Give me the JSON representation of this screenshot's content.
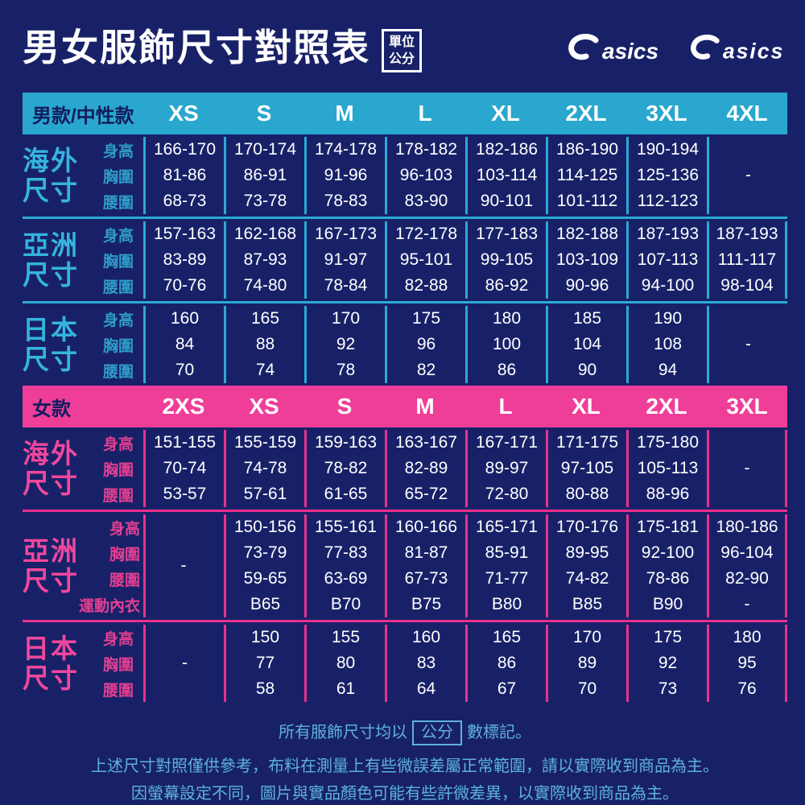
{
  "page": {
    "title": "男女服飾尺寸對照表",
    "unit_badge_line1": "單位",
    "unit_badge_line2": "公分",
    "brand": "asics"
  },
  "colors": {
    "background_navy": "#182168",
    "cyan_accent": "#29a7ce",
    "pink_accent": "#ee3e98",
    "value_text": "#ffffff",
    "footer_text": "#5db2dc"
  },
  "dash": "-",
  "tables": [
    {
      "id": "men",
      "theme": "cyan",
      "header_label": "男款/中性款",
      "sizes": [
        "XS",
        "S",
        "M",
        "L",
        "XL",
        "2XL",
        "3XL",
        "4XL"
      ],
      "sections": [
        {
          "key": "overseas",
          "name_lines": [
            "海外",
            "尺寸"
          ],
          "trailing_divider": false,
          "rows": [
            {
              "label": "身高",
              "values": [
                "166-170",
                "170-174",
                "174-178",
                "178-182",
                "182-186",
                "186-190",
                "190-194",
                ""
              ]
            },
            {
              "label": "胸圍",
              "values": [
                "81-86",
                "86-91",
                "91-96",
                "96-103",
                "103-114",
                "114-125",
                "125-136",
                "-"
              ]
            },
            {
              "label": "腰圍",
              "values": [
                "68-73",
                "73-78",
                "78-83",
                "83-90",
                "90-101",
                "101-112",
                "112-123",
                ""
              ]
            }
          ]
        },
        {
          "key": "asia",
          "name_lines": [
            "亞洲",
            "尺寸"
          ],
          "trailing_divider": true,
          "rows": [
            {
              "label": "身高",
              "values": [
                "157-163",
                "162-168",
                "167-173",
                "172-178",
                "177-183",
                "182-188",
                "187-193",
                "187-193"
              ]
            },
            {
              "label": "胸圍",
              "values": [
                "83-89",
                "87-93",
                "91-97",
                "95-101",
                "99-105",
                "103-109",
                "107-113",
                "111-117"
              ]
            },
            {
              "label": "腰圍",
              "values": [
                "70-76",
                "74-80",
                "78-84",
                "82-88",
                "86-92",
                "90-96",
                "94-100",
                "98-104"
              ]
            }
          ]
        },
        {
          "key": "japan",
          "name_lines": [
            "日本",
            "尺寸"
          ],
          "trailing_divider": false,
          "rows": [
            {
              "label": "身高",
              "values": [
                "160",
                "165",
                "170",
                "175",
                "180",
                "185",
                "190",
                ""
              ]
            },
            {
              "label": "胸圍",
              "values": [
                "84",
                "88",
                "92",
                "96",
                "100",
                "104",
                "108",
                "-"
              ]
            },
            {
              "label": "腰圍",
              "values": [
                "70",
                "74",
                "78",
                "82",
                "86",
                "90",
                "94",
                ""
              ]
            }
          ]
        }
      ]
    },
    {
      "id": "women",
      "theme": "pink",
      "header_label": "女款",
      "sizes": [
        "2XS",
        "XS",
        "S",
        "M",
        "L",
        "XL",
        "2XL",
        "3XL"
      ],
      "sections": [
        {
          "key": "overseas",
          "name_lines": [
            "海外",
            "尺寸"
          ],
          "trailing_divider": true,
          "rows": [
            {
              "label": "身高",
              "values": [
                "151-155",
                "155-159",
                "159-163",
                "163-167",
                "167-171",
                "171-175",
                "175-180",
                ""
              ]
            },
            {
              "label": "胸圍",
              "values": [
                "70-74",
                "74-78",
                "78-82",
                "82-89",
                "89-97",
                "97-105",
                "105-113",
                "-"
              ]
            },
            {
              "label": "腰圍",
              "values": [
                "53-57",
                "57-61",
                "61-65",
                "65-72",
                "72-80",
                "80-88",
                "88-96",
                ""
              ]
            }
          ]
        },
        {
          "key": "asia",
          "name_lines": [
            "亞洲",
            "尺寸"
          ],
          "trailing_divider": true,
          "dash_overlay_col": 0,
          "rows": [
            {
              "label": "身高",
              "values": [
                "",
                "150-156",
                "155-161",
                "160-166",
                "165-171",
                "170-176",
                "175-181",
                "180-186"
              ]
            },
            {
              "label": "胸圍",
              "values": [
                "",
                "73-79",
                "77-83",
                "81-87",
                "85-91",
                "89-95",
                "92-100",
                "96-104"
              ]
            },
            {
              "label": "腰圍",
              "values": [
                "",
                "59-65",
                "63-69",
                "67-73",
                "71-77",
                "74-82",
                "78-86",
                "82-90"
              ]
            },
            {
              "label": "運動內衣",
              "values": [
                "",
                "B65",
                "B70",
                "B75",
                "B80",
                "B85",
                "B90",
                "-"
              ]
            }
          ]
        },
        {
          "key": "japan",
          "name_lines": [
            "日本",
            "尺寸"
          ],
          "trailing_divider": true,
          "rows": [
            {
              "label": "身高",
              "values": [
                "",
                "150",
                "155",
                "160",
                "165",
                "170",
                "175",
                "180"
              ]
            },
            {
              "label": "胸圍",
              "values": [
                "-",
                "77",
                "80",
                "83",
                "86",
                "89",
                "92",
                "95"
              ]
            },
            {
              "label": "腰圍",
              "values": [
                "",
                "58",
                "61",
                "64",
                "67",
                "70",
                "73",
                "76"
              ]
            }
          ]
        }
      ]
    }
  ],
  "footer": {
    "line1_prefix": "所有服飾尺寸均以",
    "line1_boxed": "公分",
    "line1_suffix": "數標記。",
    "line2": "上述尺寸對照僅供參考，布料在測量上有些微誤差屬正常範圍，請以實際收到商品為主。",
    "line3": "因螢幕設定不同，圖片與實品顏色可能有些許微差異，以實際收到商品為主。"
  }
}
